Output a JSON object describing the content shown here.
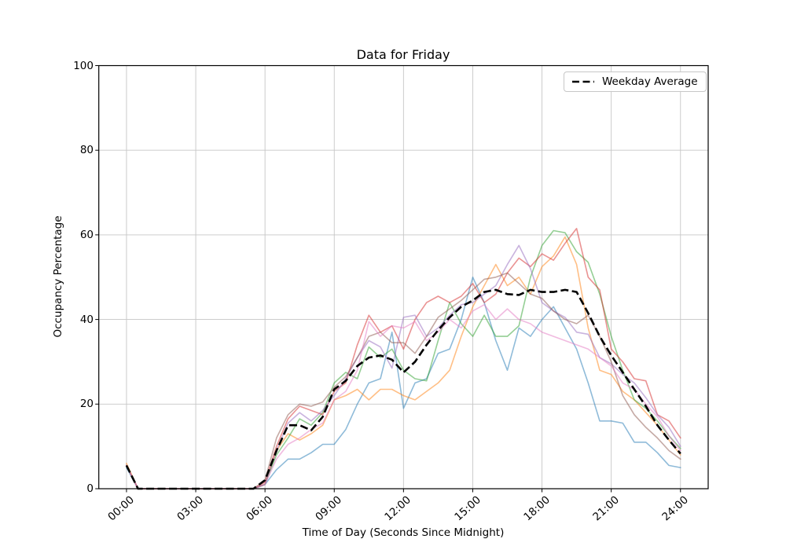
{
  "figure": {
    "title": "Data for Friday",
    "xlabel": "Time of Day (Seconds Since Midnight)",
    "ylabel": "Occupancy Percentage",
    "legend": {
      "label": "Weekday Average",
      "line_style": "dashed",
      "color": "#000000"
    }
  },
  "chart_data": {
    "type": "line",
    "title": "Data for Friday",
    "xlabel": "Time of Day (Seconds Since Midnight)",
    "ylabel": "Occupancy Percentage",
    "grid": true,
    "grid_color": "#c6c6c6",
    "legend_position": "upper right",
    "ylim": [
      0,
      100
    ],
    "xlim_hours": [
      -1.2,
      25.2
    ],
    "y_ticks": [
      0,
      20,
      40,
      60,
      80,
      100
    ],
    "x_tick_hours": [
      0,
      3,
      6,
      9,
      12,
      15,
      18,
      21,
      24
    ],
    "x_tick_labels": [
      "00:00",
      "03:00",
      "06:00",
      "09:00",
      "12:00",
      "15:00",
      "18:00",
      "21:00",
      "24:00"
    ],
    "x_hours": [
      0,
      0.5,
      1,
      1.5,
      2,
      2.5,
      3,
      3.5,
      4,
      4.5,
      5,
      5.5,
      6,
      6.5,
      7,
      7.5,
      8,
      8.5,
      9,
      9.5,
      10,
      10.5,
      11,
      11.5,
      12,
      12.5,
      13,
      13.5,
      14,
      14.5,
      15,
      15.5,
      16,
      16.5,
      17,
      17.5,
      18,
      18.5,
      19,
      19.5,
      20,
      20.5,
      21,
      21.5,
      22,
      22.5,
      23,
      23.5,
      24
    ],
    "series": [
      {
        "name": "friday-blue",
        "color": "#1f77b4",
        "opacity": 0.5,
        "values": [
          5,
          0,
          0,
          0,
          0,
          0,
          0,
          0,
          0,
          0,
          0,
          0,
          1,
          4.5,
          7,
          7,
          8.5,
          10.5,
          10.5,
          14,
          20,
          25,
          26,
          37,
          19,
          25,
          26,
          32,
          33,
          40,
          50,
          44,
          35,
          28,
          38,
          36,
          40,
          43,
          38,
          33,
          25,
          16,
          16,
          15.5,
          11,
          11,
          8.5,
          5.5,
          5
        ]
      },
      {
        "name": "friday-orange",
        "color": "#ff7f0e",
        "opacity": 0.5,
        "values": [
          6,
          0,
          0,
          0,
          0,
          0,
          0,
          0,
          0,
          0,
          0,
          0,
          1,
          9,
          13,
          11.5,
          13,
          15,
          21,
          22,
          23.5,
          21,
          23.5,
          23.5,
          22,
          21,
          23,
          25,
          28,
          36,
          43,
          48,
          53,
          48,
          50,
          46,
          52.5,
          55,
          59.5,
          53,
          38,
          28,
          27,
          23,
          21,
          18,
          15,
          11.5,
          8
        ]
      },
      {
        "name": "friday-green",
        "color": "#2ca02c",
        "opacity": 0.5,
        "values": [
          5.5,
          0,
          0,
          0,
          0,
          0,
          0,
          0,
          0,
          0,
          0,
          0,
          1,
          8,
          12,
          16.5,
          15,
          18,
          25,
          27.5,
          26,
          33.5,
          31,
          33,
          28,
          26,
          25.5,
          35,
          44,
          39,
          36,
          41,
          36,
          36,
          38.5,
          50,
          57.5,
          61,
          60.5,
          56,
          53.5,
          46,
          36,
          28,
          21,
          19,
          16,
          12.5,
          9.5
        ]
      },
      {
        "name": "friday-red",
        "color": "#d62728",
        "opacity": 0.5,
        "values": [
          5.5,
          0,
          0,
          0,
          0,
          0,
          0,
          0,
          0,
          0,
          0,
          0,
          1.5,
          10,
          16.5,
          19.5,
          18.5,
          17.5,
          23,
          25,
          34,
          41,
          37,
          38.5,
          33,
          40,
          44,
          45.5,
          44,
          45.5,
          48.5,
          44,
          46,
          51,
          54.5,
          52.5,
          55.5,
          54,
          58,
          61.5,
          50,
          47,
          33,
          30,
          26,
          25.5,
          17.5,
          16,
          12
        ]
      },
      {
        "name": "friday-purple",
        "color": "#9467bd",
        "opacity": 0.5,
        "values": [
          5.5,
          0,
          0,
          0,
          0,
          0,
          0,
          0,
          0,
          0,
          0,
          0,
          1,
          9,
          15.5,
          18,
          16,
          18.5,
          22,
          26,
          31,
          35,
          33.5,
          28.5,
          40.5,
          41,
          36,
          38,
          41,
          43.5,
          44,
          46,
          48,
          53,
          57.5,
          52,
          44,
          42,
          40.5,
          37,
          36.5,
          31,
          29.5,
          27,
          25,
          21.5,
          17.5,
          14.5,
          10
        ]
      },
      {
        "name": "friday-brown",
        "color": "#8c564b",
        "opacity": 0.5,
        "values": [
          5.5,
          0,
          0,
          0,
          0,
          0,
          0,
          0,
          0,
          0,
          0,
          0,
          2,
          12,
          17.5,
          20,
          19.5,
          20.5,
          24,
          26.5,
          31,
          36,
          37,
          34.5,
          34.5,
          32,
          36,
          40.5,
          42.5,
          44.5,
          47,
          49.5,
          50,
          51,
          48.5,
          46,
          45,
          42,
          40,
          39,
          41,
          36,
          30,
          22,
          17.5,
          14.5,
          12,
          9,
          7
        ]
      },
      {
        "name": "friday-pink",
        "color": "#e377c2",
        "opacity": 0.5,
        "values": [
          5.5,
          0,
          0,
          0,
          0,
          0,
          0,
          0,
          0,
          0,
          0,
          0,
          1,
          7,
          10.5,
          12,
          14,
          15.5,
          21,
          23,
          28,
          39.5,
          36,
          38.5,
          38,
          39.5,
          35,
          37,
          40,
          38,
          42,
          43.5,
          40,
          42.5,
          40,
          39,
          37,
          36,
          35,
          34,
          33,
          31,
          29,
          25,
          23.5,
          20,
          17,
          12.5,
          9
        ]
      }
    ],
    "average_series": {
      "name": "weekday-average",
      "label": "Weekday Average",
      "color": "#000000",
      "dashed": true,
      "values": [
        5.5,
        0,
        0,
        0,
        0,
        0,
        0,
        0,
        0,
        0,
        0,
        0,
        2,
        9,
        15,
        15,
        13.8,
        17,
        23.5,
        25.5,
        29,
        31,
        31.5,
        30.5,
        27.5,
        30,
        34,
        37.5,
        40.5,
        43,
        44.5,
        46.5,
        47,
        46,
        45.8,
        47,
        46.5,
        46.5,
        47,
        46.5,
        41.5,
        36,
        31.5,
        27.5,
        23.5,
        19.5,
        15,
        11.5,
        8.3
      ]
    }
  }
}
